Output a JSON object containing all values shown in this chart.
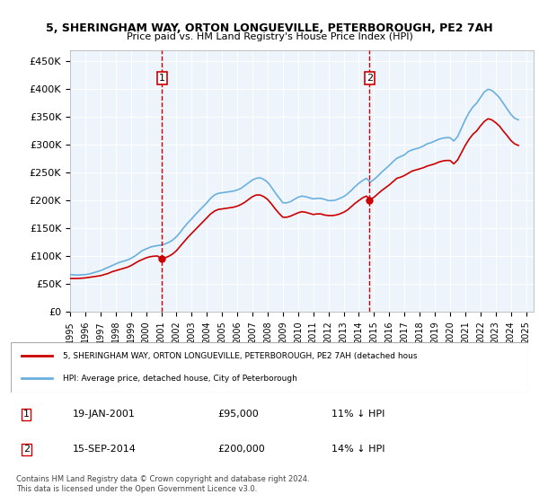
{
  "title": "5, SHERINGHAM WAY, ORTON LONGUEVILLE, PETERBOROUGH, PE2 7AH",
  "subtitle": "Price paid vs. HM Land Registry's House Price Index (HPI)",
  "ylim": [
    0,
    470000
  ],
  "yticks": [
    0,
    50000,
    100000,
    150000,
    200000,
    250000,
    300000,
    350000,
    400000,
    450000
  ],
  "ytick_labels": [
    "£0",
    "£50K",
    "£100K",
    "£150K",
    "£200K",
    "£250K",
    "£300K",
    "£350K",
    "£400K",
    "£450K"
  ],
  "xlim_start": 1995.0,
  "xlim_end": 2025.5,
  "hpi_color": "#6ab0de",
  "property_color": "#cc0000",
  "background_color": "#eef4fb",
  "sale1_x": 2001.05,
  "sale1_y": 95000,
  "sale2_x": 2014.71,
  "sale2_y": 200000,
  "legend_line1": "5, SHERINGHAM WAY, ORTON LONGUEVILLE, PETERBOROUGH, PE2 7AH (detached hous",
  "legend_line2": "HPI: Average price, detached house, City of Peterborough",
  "annotation1_num": "1",
  "annotation1_date": "19-JAN-2001",
  "annotation1_price": "£95,000",
  "annotation1_hpi": "11% ↓ HPI",
  "annotation2_num": "2",
  "annotation2_date": "15-SEP-2014",
  "annotation2_price": "£200,000",
  "annotation2_hpi": "14% ↓ HPI",
  "footnote": "Contains HM Land Registry data © Crown copyright and database right 2024.\nThis data is licensed under the Open Government Licence v3.0.",
  "hpi_data_x": [
    1995.0,
    1995.25,
    1995.5,
    1995.75,
    1996.0,
    1996.25,
    1996.5,
    1996.75,
    1997.0,
    1997.25,
    1997.5,
    1997.75,
    1998.0,
    1998.25,
    1998.5,
    1998.75,
    1999.0,
    1999.25,
    1999.5,
    1999.75,
    2000.0,
    2000.25,
    2000.5,
    2000.75,
    2001.0,
    2001.25,
    2001.5,
    2001.75,
    2002.0,
    2002.25,
    2002.5,
    2002.75,
    2003.0,
    2003.25,
    2003.5,
    2003.75,
    2004.0,
    2004.25,
    2004.5,
    2004.75,
    2005.0,
    2005.25,
    2005.5,
    2005.75,
    2006.0,
    2006.25,
    2006.5,
    2006.75,
    2007.0,
    2007.25,
    2007.5,
    2007.75,
    2008.0,
    2008.25,
    2008.5,
    2008.75,
    2009.0,
    2009.25,
    2009.5,
    2009.75,
    2010.0,
    2010.25,
    2010.5,
    2010.75,
    2011.0,
    2011.25,
    2011.5,
    2011.75,
    2012.0,
    2012.25,
    2012.5,
    2012.75,
    2013.0,
    2013.25,
    2013.5,
    2013.75,
    2014.0,
    2014.25,
    2014.5,
    2014.75,
    2015.0,
    2015.25,
    2015.5,
    2015.75,
    2016.0,
    2016.25,
    2016.5,
    2016.75,
    2017.0,
    2017.25,
    2017.5,
    2017.75,
    2018.0,
    2018.25,
    2018.5,
    2018.75,
    2019.0,
    2019.25,
    2019.5,
    2019.75,
    2020.0,
    2020.25,
    2020.5,
    2020.75,
    2021.0,
    2021.25,
    2021.5,
    2021.75,
    2022.0,
    2022.25,
    2022.5,
    2022.75,
    2023.0,
    2023.25,
    2023.5,
    2023.75,
    2024.0,
    2024.25,
    2024.5
  ],
  "hpi_data_y": [
    67000,
    66500,
    66000,
    66500,
    67000,
    68000,
    70000,
    72000,
    74000,
    77000,
    80000,
    83000,
    86000,
    89000,
    91000,
    93000,
    96000,
    100000,
    105000,
    110000,
    113000,
    116000,
    118000,
    119000,
    120000,
    122000,
    125000,
    129000,
    135000,
    143000,
    152000,
    160000,
    167000,
    175000,
    182000,
    189000,
    196000,
    204000,
    210000,
    213000,
    214000,
    215000,
    216000,
    217000,
    219000,
    222000,
    227000,
    232000,
    237000,
    240000,
    241000,
    238000,
    233000,
    224000,
    214000,
    205000,
    196000,
    196000,
    198000,
    202000,
    206000,
    208000,
    207000,
    205000,
    203000,
    204000,
    204000,
    202000,
    200000,
    200000,
    201000,
    204000,
    207000,
    212000,
    218000,
    225000,
    231000,
    236000,
    240000,
    233000,
    238000,
    244000,
    251000,
    257000,
    263000,
    270000,
    276000,
    279000,
    282000,
    288000,
    291000,
    293000,
    295000,
    298000,
    302000,
    304000,
    307000,
    310000,
    312000,
    313000,
    313000,
    307000,
    315000,
    330000,
    345000,
    358000,
    368000,
    375000,
    385000,
    395000,
    400000,
    398000,
    392000,
    385000,
    375000,
    365000,
    355000,
    348000,
    345000
  ],
  "prop_data_x": [
    1995.0,
    1995.25,
    1995.5,
    1995.75,
    1996.0,
    1996.25,
    1996.5,
    1996.75,
    1997.0,
    1997.25,
    1997.5,
    1997.75,
    1998.0,
    1998.25,
    1998.5,
    1998.75,
    1999.0,
    1999.25,
    1999.5,
    1999.75,
    2000.0,
    2000.25,
    2000.5,
    2000.75,
    2001.0,
    2001.25,
    2001.5,
    2001.75,
    2002.0,
    2002.25,
    2002.5,
    2002.75,
    2003.0,
    2003.25,
    2003.5,
    2003.75,
    2004.0,
    2004.25,
    2004.5,
    2004.75,
    2005.0,
    2005.25,
    2005.5,
    2005.75,
    2006.0,
    2006.25,
    2006.5,
    2006.75,
    2007.0,
    2007.25,
    2007.5,
    2007.75,
    2008.0,
    2008.25,
    2008.5,
    2008.75,
    2009.0,
    2009.25,
    2009.5,
    2009.75,
    2010.0,
    2010.25,
    2010.5,
    2010.75,
    2011.0,
    2011.25,
    2011.5,
    2011.75,
    2012.0,
    2012.25,
    2012.5,
    2012.75,
    2013.0,
    2013.25,
    2013.5,
    2013.75,
    2014.0,
    2014.25,
    2014.5,
    2014.75,
    2015.0,
    2015.25,
    2015.5,
    2015.75,
    2016.0,
    2016.25,
    2016.5,
    2016.75,
    2017.0,
    2017.25,
    2017.5,
    2017.75,
    2018.0,
    2018.25,
    2018.5,
    2018.75,
    2019.0,
    2019.25,
    2019.5,
    2019.75,
    2020.0,
    2020.25,
    2020.5,
    2020.75,
    2021.0,
    2021.25,
    2021.5,
    2021.75,
    2022.0,
    2022.25,
    2022.5,
    2022.75,
    2023.0,
    2023.25,
    2023.5,
    2023.75,
    2024.0,
    2024.25,
    2024.5
  ],
  "prop_data_y": [
    60000,
    60000,
    60000,
    60500,
    61000,
    62000,
    63000,
    64000,
    65000,
    67000,
    69000,
    72000,
    74000,
    76000,
    78000,
    80000,
    83000,
    87000,
    91000,
    94000,
    97000,
    99000,
    100000,
    100500,
    95000,
    97000,
    100000,
    104000,
    110000,
    118000,
    126000,
    134000,
    141000,
    148000,
    155000,
    162000,
    169000,
    176000,
    181000,
    184000,
    185000,
    186000,
    187000,
    188000,
    190000,
    193000,
    197000,
    202000,
    207000,
    210000,
    210000,
    207000,
    202000,
    194000,
    185000,
    177000,
    170000,
    170000,
    172000,
    175000,
    178000,
    180000,
    179000,
    177000,
    175000,
    176000,
    176000,
    174000,
    173000,
    173000,
    174000,
    176000,
    179000,
    183000,
    189000,
    195000,
    200000,
    205000,
    208000,
    202000,
    206000,
    212000,
    218000,
    223000,
    228000,
    234000,
    240000,
    242000,
    245000,
    249000,
    253000,
    255000,
    257000,
    259000,
    262000,
    264000,
    266000,
    269000,
    271000,
    272000,
    272000,
    266000,
    273000,
    286000,
    299000,
    310000,
    319000,
    325000,
    334000,
    342000,
    347000,
    345000,
    340000,
    334000,
    325000,
    317000,
    308000,
    302000,
    299000
  ]
}
